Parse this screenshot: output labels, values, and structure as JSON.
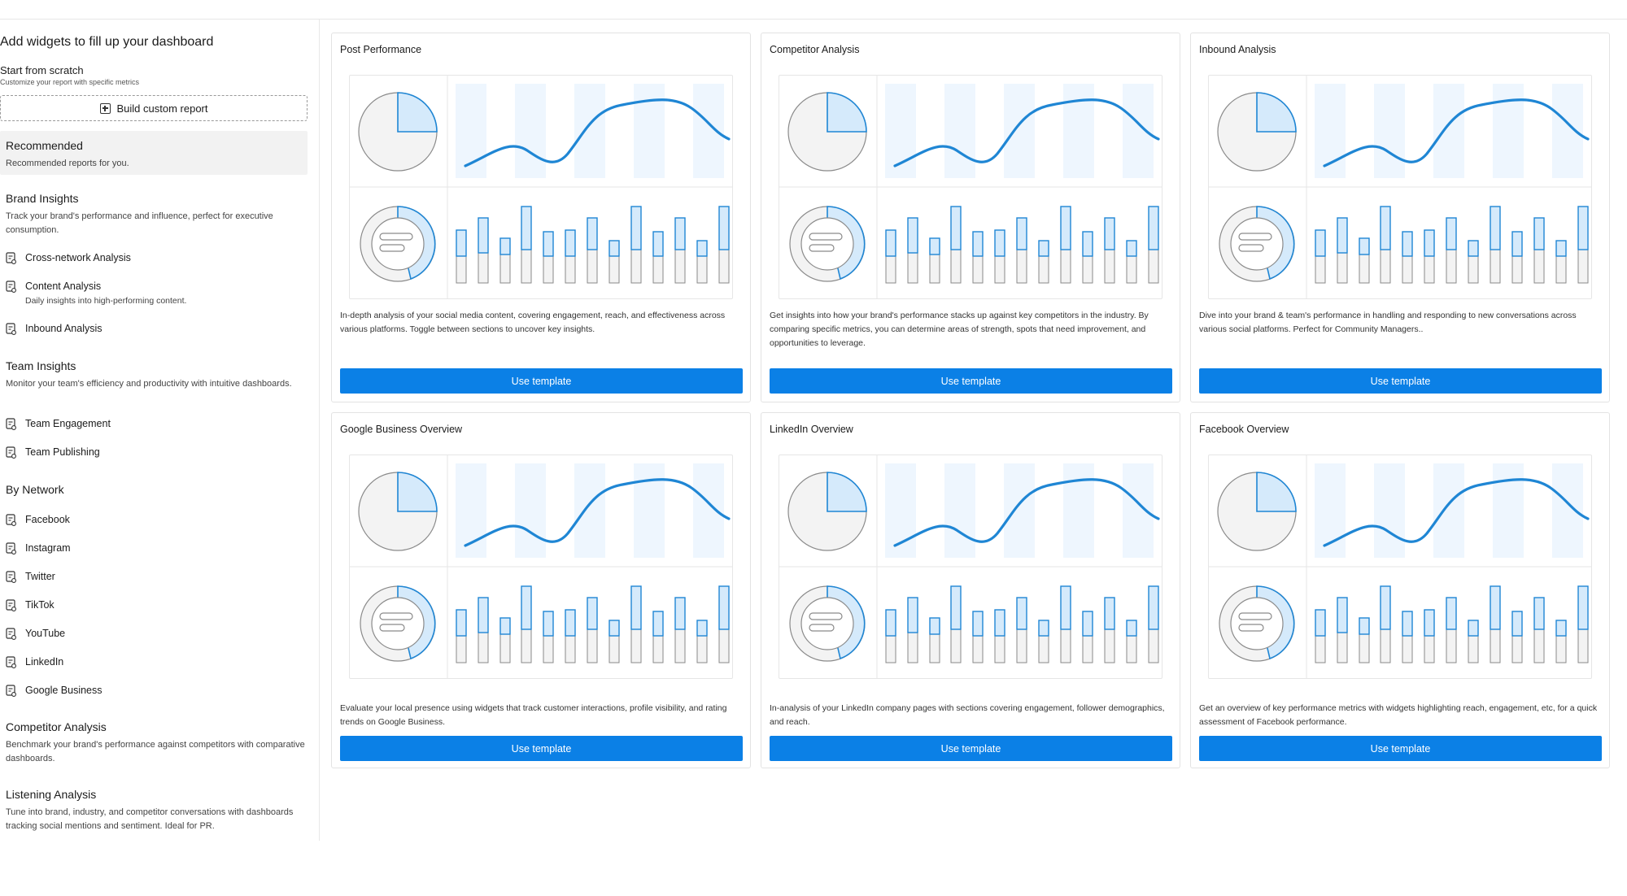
{
  "sidebar": {
    "heading": "Add widgets to fill up your dashboard",
    "scratch_title": "Start from scratch",
    "scratch_subtitle": "Customize your report with specific metrics",
    "build_button": "Build custom report",
    "recommended": {
      "title": "Recommended",
      "subtitle": "Recommended reports for you."
    },
    "brand_insights": {
      "title": "Brand Insights",
      "desc": "Track your brand's performance and influence, perfect for executive consumption.",
      "items": [
        "Cross-network Analysis",
        "Content Analysis",
        "Inbound Analysis"
      ],
      "content_analysis_sub": "Daily insights into high-performing content."
    },
    "team_insights": {
      "title": "Team Insights",
      "desc": "Monitor your team's efficiency and productivity with intuitive dashboards.",
      "items": [
        "Team Engagement",
        "Team Publishing"
      ]
    },
    "by_network": {
      "title": "By Network",
      "items": [
        "Facebook",
        "Instagram",
        "Twitter",
        "TikTok",
        "YouTube",
        "LinkedIn",
        "Google Business"
      ]
    },
    "competitor_analysis": {
      "title": "Competitor Analysis",
      "desc": "Benchmark your brand's performance against competitors with comparative dashboards."
    },
    "listening_analysis": {
      "title": "Listening Analysis",
      "desc": "Tune into brand, industry, and competitor conversations with dashboards tracking social mentions and sentiment. Ideal for PR."
    }
  },
  "cards": [
    {
      "title": "Post Performance",
      "desc": "In-depth analysis of your social media content, covering engagement, reach, and effectiveness across various platforms. Toggle between sections to uncover key insights.",
      "button": "Use template"
    },
    {
      "title": "Competitor Analysis",
      "desc": "Get insights into how your brand's performance stacks up against key competitors in the industry. By comparing specific metrics, you can determine areas of strength, spots that need improvement, and opportunities to leverage.",
      "button": "Use template"
    },
    {
      "title": "Inbound Analysis",
      "desc": "Dive into your brand & team's performance in handling and responding to new conversations across various social platforms. Perfect for Community Managers..",
      "button": "Use template"
    },
    {
      "title": "Google Business Overview",
      "desc": "Evaluate your local presence using widgets that track customer interactions, profile visibility, and rating trends on Google Business.",
      "button": "Use template"
    },
    {
      "title": "LinkedIn Overview",
      "desc": "In-analysis of your LinkedIn company pages with sections covering engagement, follower demographics, and reach.",
      "button": "Use template"
    },
    {
      "title": "Facebook Overview",
      "desc": "Get an overview of key performance metrics with widgets highlighting reach, engagement, etc, for a quick assessment of Facebook performance.",
      "button": "Use template"
    }
  ],
  "colors": {
    "accent": "#0b80e6",
    "chart_blue": "#1f86d4",
    "chart_light": "#d5eafb",
    "chart_gray": "#f3f3f3"
  },
  "icons": {
    "build_button": "plus-square-icon",
    "nav_item": "report-icon"
  }
}
